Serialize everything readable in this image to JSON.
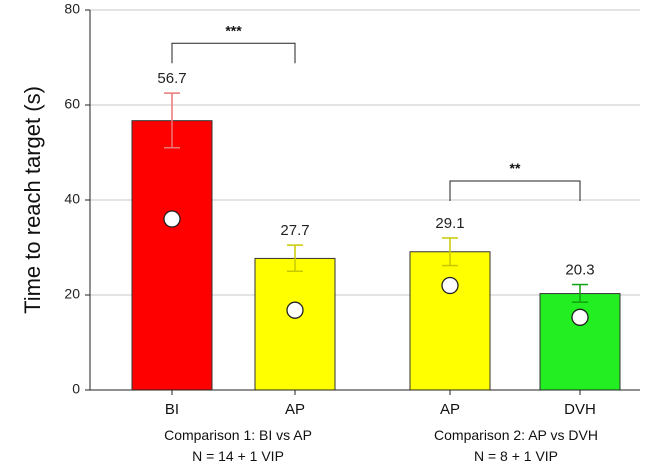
{
  "chart_data": {
    "type": "bar",
    "ylabel": "Time to reach target (s)",
    "ylim": [
      0,
      80
    ],
    "yticks": [
      0,
      20,
      40,
      60,
      80
    ],
    "grid": true,
    "bars": [
      {
        "category": "BI",
        "value": 56.7,
        "value_label": "56.7",
        "error_low": 51.0,
        "error_high": 62.5,
        "marker": 36.0,
        "color": "#ff0000",
        "error_color": "#e87878"
      },
      {
        "category": "AP",
        "value": 27.7,
        "value_label": "27.7",
        "error_low": 25.0,
        "error_high": 30.5,
        "marker": 16.8,
        "color": "#ffff00",
        "error_color": "#c8c800"
      },
      {
        "category": "AP",
        "value": 29.1,
        "value_label": "29.1",
        "error_low": 26.2,
        "error_high": 32.0,
        "marker": 22.0,
        "color": "#ffff00",
        "error_color": "#c8c800"
      },
      {
        "category": "DVH",
        "value": 20.3,
        "value_label": "20.3",
        "error_low": 18.5,
        "error_high": 22.2,
        "marker": 15.3,
        "color": "#22ee22",
        "error_color": "#10a010"
      }
    ],
    "groups": [
      {
        "line1": "Comparison 1: BI vs AP",
        "line2": "N = 14 + 1 VIP"
      },
      {
        "line1": "Comparison 2: AP vs DVH",
        "line2": "N = 8 + 1 VIP"
      }
    ],
    "significance": [
      {
        "label": "***",
        "from_bar": 0,
        "to_bar": 1,
        "y": 73
      },
      {
        "label": "**",
        "from_bar": 2,
        "to_bar": 3,
        "y": 44
      }
    ]
  }
}
